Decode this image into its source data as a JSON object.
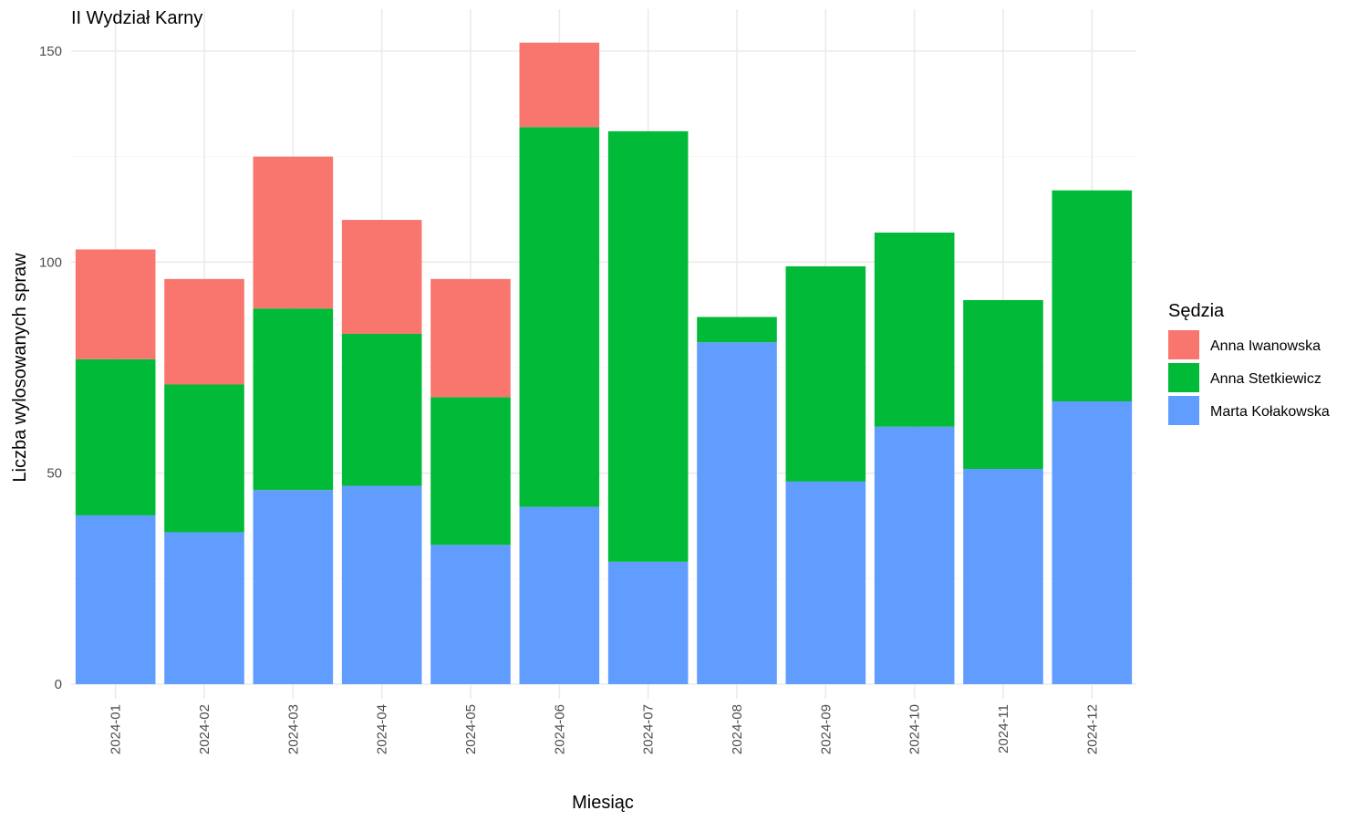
{
  "chart_data": {
    "type": "bar",
    "stacked": true,
    "title": "II Wydział Karny",
    "xlabel": "Miesiąc",
    "ylabel": "Liczba wylosowanych spraw",
    "ylim": [
      0,
      155
    ],
    "yticks": [
      0,
      50,
      100,
      150
    ],
    "grid": true,
    "legend_title": "Sędzia",
    "legend_position": "right",
    "categories": [
      "2024-01",
      "2024-02",
      "2024-03",
      "2024-04",
      "2024-05",
      "2024-06",
      "2024-07",
      "2024-08",
      "2024-09",
      "2024-10",
      "2024-11",
      "2024-12"
    ],
    "series": [
      {
        "name": "Marta Kołakowska",
        "color": "#619CFF",
        "values": [
          40,
          36,
          46,
          47,
          33,
          42,
          29,
          81,
          48,
          61,
          51,
          67
        ]
      },
      {
        "name": "Anna Stetkiewicz",
        "color": "#00BA38",
        "values": [
          37,
          35,
          43,
          36,
          35,
          90,
          102,
          6,
          51,
          46,
          40,
          50
        ]
      },
      {
        "name": "Anna Iwanowska",
        "color": "#F8766D",
        "values": [
          26,
          25,
          36,
          27,
          28,
          20,
          0,
          0,
          0,
          0,
          0,
          0
        ]
      }
    ],
    "legend_order": [
      "Anna Iwanowska",
      "Anna Stetkiewicz",
      "Marta Kołakowska"
    ]
  }
}
